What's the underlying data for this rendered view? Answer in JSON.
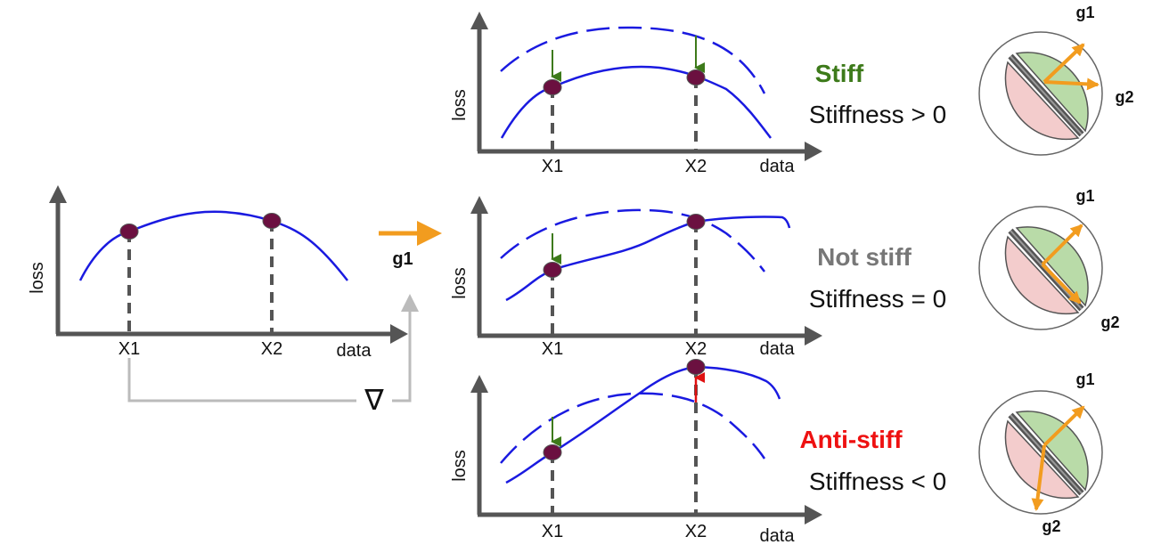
{
  "colors": {
    "axis": "#555555",
    "curve": "#1a1ae0",
    "point": "#6b1040",
    "down_arrow": "#3d7a1a",
    "up_arrow": "#e01010",
    "g1_arrow": "#f29c1f",
    "feedback": "#bbbbbb",
    "green_half": "#b9dba8",
    "red_half": "#f3cccc",
    "stiff": "#3d7a1a",
    "not_stiff": "#777777",
    "anti_stiff": "#ee1111"
  },
  "left_plot": {
    "ylabel": "loss",
    "xlabel": "data",
    "x1": "X1",
    "x2": "X2"
  },
  "update": {
    "arrow_label": "g1",
    "nabla": "∇"
  },
  "rows": [
    {
      "ylabel": "loss",
      "xlabel": "data",
      "x1": "X1",
      "x2": "X2",
      "category": "Stiff",
      "stiffness": "Stiffness > 0",
      "g1": "g1",
      "g2": "g2"
    },
    {
      "ylabel": "loss",
      "xlabel": "data",
      "x1": "X1",
      "x2": "X2",
      "category": "Not stiff",
      "stiffness": "Stiffness = 0",
      "g1": "g1",
      "g2": "g2"
    },
    {
      "ylabel": "loss",
      "xlabel": "data",
      "x1": "X1",
      "x2": "X2",
      "category": "Anti-stiff",
      "stiffness": "Stiffness < 0",
      "g1": "g1",
      "g2": "g2"
    }
  ]
}
